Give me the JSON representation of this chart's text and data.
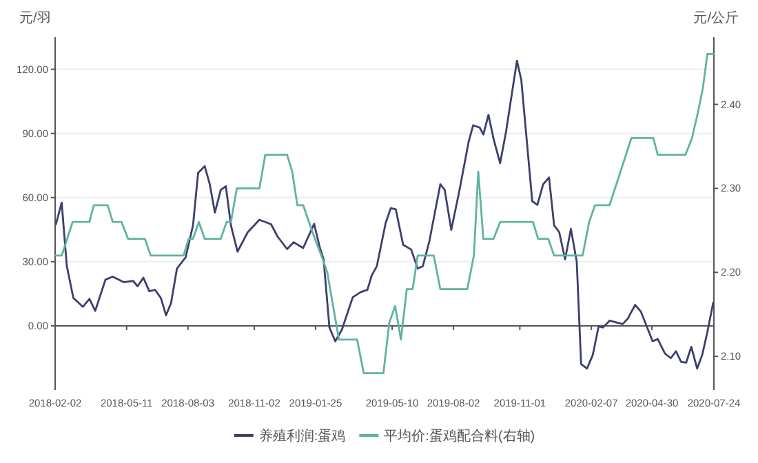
{
  "chart_data": {
    "type": "line",
    "ylabel": "元/羽",
    "y2label": "元/公斤",
    "xlim": [
      "2018-02-02",
      "2020-07-24"
    ],
    "xticks": [
      "2018-02-02",
      "2018-05-11",
      "2018-08-03",
      "2018-11-02",
      "2019-01-25",
      "2019-05-10",
      "2019-08-02",
      "2019-11-01",
      "2020-02-07",
      "2020-04-30",
      "2020-07-24"
    ],
    "ylim": [
      -30,
      135
    ],
    "yticks": [
      {
        "value": 0,
        "label": "0.00"
      },
      {
        "value": 30,
        "label": "30.00"
      },
      {
        "value": 60,
        "label": "60.00"
      },
      {
        "value": 90,
        "label": "90.00"
      },
      {
        "value": 120,
        "label": "120.00"
      }
    ],
    "y2lim": [
      2.06,
      2.48
    ],
    "y2ticks": [
      {
        "value": 2.1,
        "label": "2.10"
      },
      {
        "value": 2.2,
        "label": "2.20"
      },
      {
        "value": 2.3,
        "label": "2.30"
      },
      {
        "value": 2.4,
        "label": "2.40"
      }
    ],
    "grid": "y",
    "legend": "bottom",
    "marker": "none",
    "line_style": "solid",
    "series": [
      {
        "name": "养殖利润:蛋鸡",
        "color": "#3d3f6e",
        "x": [
          "2018-02-03",
          "2018-02-11",
          "2018-02-18",
          "2018-02-27",
          "2018-03-12",
          "2018-03-21",
          "2018-03-29",
          "2018-04-12",
          "2018-04-22",
          "2018-05-07",
          "2018-05-20",
          "2018-05-26",
          "2018-06-03",
          "2018-06-11",
          "2018-06-19",
          "2018-06-27",
          "2018-07-04",
          "2018-07-11",
          "2018-07-19",
          "2018-07-31",
          "2018-08-10",
          "2018-08-17",
          "2018-08-26",
          "2018-09-02",
          "2018-09-09",
          "2018-09-17",
          "2018-09-24",
          "2018-10-01",
          "2018-10-10",
          "2018-10-24",
          "2018-11-09",
          "2018-11-25",
          "2018-12-04",
          "2018-12-17",
          "2018-12-26",
          "2019-01-08",
          "2019-01-23",
          "2019-01-31",
          "2019-02-05",
          "2019-02-13",
          "2019-02-21",
          "2019-03-02",
          "2019-03-17",
          "2019-03-28",
          "2019-04-06",
          "2019-04-12",
          "2019-04-19",
          "2019-05-01",
          "2019-05-08",
          "2019-05-15",
          "2019-05-25",
          "2019-06-05",
          "2019-06-14",
          "2019-06-21",
          "2019-06-30",
          "2019-07-15",
          "2019-07-21",
          "2019-07-30",
          "2019-08-10",
          "2019-08-23",
          "2019-08-29",
          "2019-09-07",
          "2019-09-12",
          "2019-09-19",
          "2019-09-26",
          "2019-10-05",
          "2019-10-13",
          "2019-10-28",
          "2019-11-03",
          "2019-11-18",
          "2019-11-25",
          "2019-12-03",
          "2019-12-11",
          "2019-12-18",
          "2019-12-25",
          "2020-01-02",
          "2020-01-10",
          "2020-01-18",
          "2020-01-24",
          "2020-02-01",
          "2020-02-09",
          "2020-02-17",
          "2020-02-23",
          "2020-03-03",
          "2020-03-21",
          "2020-03-28",
          "2020-04-07",
          "2020-04-15",
          "2020-05-01",
          "2020-05-08",
          "2020-05-18",
          "2020-05-26",
          "2020-06-02",
          "2020-06-09",
          "2020-06-16",
          "2020-06-23",
          "2020-07-01",
          "2020-07-08",
          "2020-07-15",
          "2020-07-23"
        ],
        "values": [
          47.5,
          57.6,
          28,
          13,
          8.9,
          12.6,
          7,
          21.6,
          23,
          20.4,
          21,
          18.5,
          22.5,
          16.2,
          16.8,
          13,
          4.9,
          10.8,
          26.8,
          32.1,
          47,
          71.5,
          74.7,
          66.2,
          53,
          63.6,
          65.3,
          47,
          34.7,
          43.8,
          49.6,
          47.5,
          41.7,
          35.9,
          39.1,
          36.4,
          47.7,
          36.4,
          31.1,
          -0.8,
          -7.2,
          -1.9,
          13.4,
          15.8,
          16.8,
          23.6,
          27.9,
          48,
          55,
          54.5,
          37.9,
          35.7,
          26.8,
          27.9,
          39.6,
          66.2,
          63.6,
          44.9,
          63,
          86.4,
          93.8,
          92.7,
          89.5,
          98.7,
          87.4,
          76.1,
          90.6,
          124,
          115,
          58.3,
          56.6,
          66.2,
          69.4,
          47,
          43.8,
          31.1,
          45.3,
          30,
          -17.9,
          -20,
          -13.6,
          -0.2,
          -0.8,
          2.4,
          0.8,
          3.4,
          9.8,
          6.6,
          -7.2,
          -6.2,
          -13,
          -15.1,
          -11.9,
          -16.8,
          -17.2,
          -9.8,
          -20,
          -13.6,
          -3,
          10.8
        ]
      },
      {
        "name": "平均价:蛋鸡配合料(右轴)",
        "color": "#5fb3a0",
        "axis": "y2",
        "x": [
          "2018-02-03",
          "2018-02-11",
          "2018-02-26",
          "2018-03-21",
          "2018-03-27",
          "2018-04-15",
          "2018-04-22",
          "2018-05-04",
          "2018-05-13",
          "2018-06-05",
          "2018-06-13",
          "2018-07-28",
          "2018-08-04",
          "2018-08-10",
          "2018-08-18",
          "2018-08-26",
          "2018-09-17",
          "2018-09-25",
          "2018-10-01",
          "2018-10-09",
          "2018-11-09",
          "2018-11-17",
          "2018-12-17",
          "2018-12-24",
          "2018-12-31",
          "2019-01-08",
          "2019-01-16",
          "2019-01-24",
          "2019-02-02",
          "2019-02-10",
          "2019-02-26",
          "2019-03-23",
          "2019-04-01",
          "2019-04-28",
          "2019-05-06",
          "2019-05-14",
          "2019-05-22",
          "2019-05-30",
          "2019-06-07",
          "2019-06-14",
          "2019-07-06",
          "2019-07-15",
          "2019-08-21",
          "2019-08-30",
          "2019-09-05",
          "2019-09-12",
          "2019-09-26",
          "2019-10-05",
          "2019-11-19",
          "2019-11-26",
          "2019-12-10",
          "2019-12-18",
          "2020-01-26",
          "2020-02-04",
          "2020-02-12",
          "2020-03-03",
          "2020-04-02",
          "2020-05-02",
          "2020-05-08",
          "2020-06-15",
          "2020-06-24",
          "2020-07-02",
          "2020-07-09",
          "2020-07-15",
          "2020-07-23"
        ],
        "values": [
          2.22,
          2.22,
          2.26,
          2.26,
          2.28,
          2.28,
          2.26,
          2.26,
          2.24,
          2.24,
          2.22,
          2.22,
          2.24,
          2.24,
          2.26,
          2.24,
          2.24,
          2.26,
          2.26,
          2.3,
          2.3,
          2.34,
          2.34,
          2.32,
          2.28,
          2.28,
          2.26,
          2.24,
          2.22,
          2.2,
          2.12,
          2.12,
          2.08,
          2.08,
          2.14,
          2.16,
          2.12,
          2.18,
          2.18,
          2.22,
          2.22,
          2.18,
          2.18,
          2.22,
          2.32,
          2.24,
          2.24,
          2.26,
          2.26,
          2.24,
          2.24,
          2.22,
          2.22,
          2.26,
          2.28,
          2.28,
          2.36,
          2.36,
          2.34,
          2.34,
          2.36,
          2.39,
          2.42,
          2.46,
          2.46
        ]
      }
    ]
  }
}
